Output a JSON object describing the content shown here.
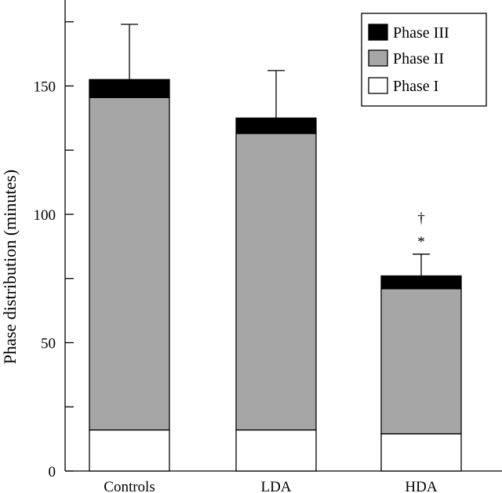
{
  "chart_data": {
    "type": "bar",
    "stacked": true,
    "title": "",
    "xlabel": "",
    "ylabel": "Phase distribution (minutes)",
    "categories": [
      "Controls",
      "LDA",
      "HDA"
    ],
    "series": [
      {
        "name": "Phase I",
        "values": [
          16,
          16,
          14.5
        ],
        "color": "#ffffff"
      },
      {
        "name": "Phase II",
        "values": [
          129.5,
          115.5,
          56.5
        ],
        "color": "#a6a6a6"
      },
      {
        "name": "Phase III",
        "values": [
          7,
          6,
          5
        ],
        "color": "#000000"
      }
    ],
    "totals": [
      152.5,
      137.5,
      76
    ],
    "error_bars_upper": [
      174,
      156,
      84.5
    ],
    "ylim": [
      0,
      180
    ],
    "yticks": [
      0,
      50,
      100,
      150
    ],
    "yticks_minor": [
      25,
      75,
      125,
      175
    ],
    "legend_position": "top-right",
    "legend_order": [
      "Phase III",
      "Phase II",
      "Phase I"
    ],
    "annotations": [
      {
        "category": "HDA",
        "text": "†"
      },
      {
        "category": "HDA",
        "text": "*"
      }
    ],
    "grid": false
  }
}
